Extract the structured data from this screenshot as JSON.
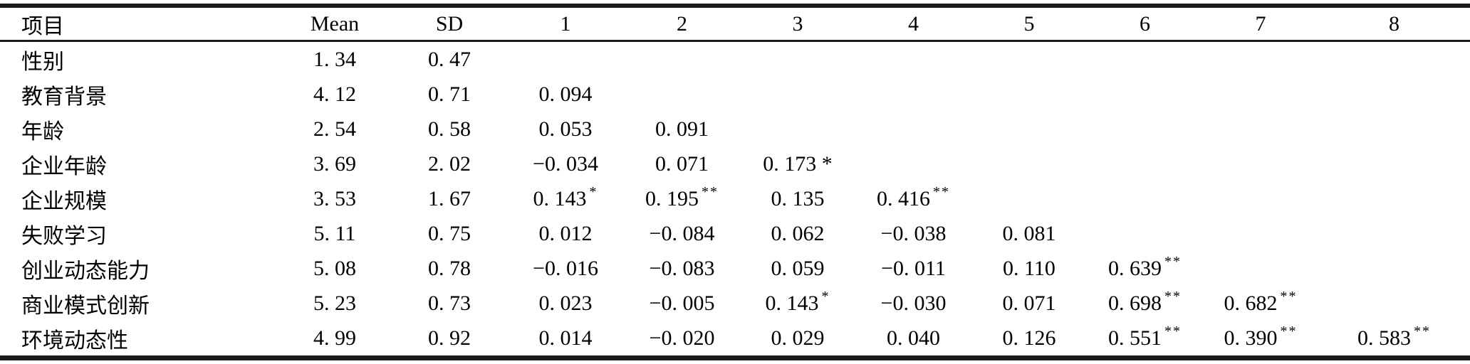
{
  "table": {
    "columns": [
      "项目",
      "Mean",
      "SD",
      "1",
      "2",
      "3",
      "4",
      "5",
      "6",
      "7",
      "8"
    ],
    "significance_note_markers": {
      "single": "*",
      "double": "**"
    },
    "rows": [
      {
        "label": "性别",
        "mean": "1. 34",
        "sd": "0. 47",
        "cells": [
          "",
          "",
          "",
          "",
          "",
          "",
          "",
          ""
        ]
      },
      {
        "label": "教育背景",
        "mean": "4. 12",
        "sd": "0. 71",
        "cells": [
          "0. 094",
          "",
          "",
          "",
          "",
          "",
          "",
          ""
        ]
      },
      {
        "label": "年龄",
        "mean": "2. 54",
        "sd": "0. 58",
        "cells": [
          "0. 053",
          "0. 091",
          "",
          "",
          "",
          "",
          "",
          ""
        ]
      },
      {
        "label": "企业年龄",
        "mean": "3. 69",
        "sd": "2. 02",
        "cells": [
          "−0. 034",
          "0. 071",
          "0. 173 *",
          "",
          "",
          "",
          "",
          ""
        ]
      },
      {
        "label": "企业规模",
        "mean": "3. 53",
        "sd": "1. 67",
        "cells": [
          "0. 143^*",
          "0. 195^**",
          "0. 135",
          "0. 416^**",
          "",
          "",
          "",
          ""
        ]
      },
      {
        "label": "失败学习",
        "mean": "5. 11",
        "sd": "0. 75",
        "cells": [
          "0. 012",
          "−0. 084",
          "0. 062",
          "−0. 038",
          "0. 081",
          "",
          "",
          ""
        ]
      },
      {
        "label": "创业动态能力",
        "mean": "5. 08",
        "sd": "0. 78",
        "cells": [
          "−0. 016",
          "−0. 083",
          "0. 059",
          "−0. 011",
          "0. 110",
          "0. 639^**",
          "",
          ""
        ]
      },
      {
        "label": "商业模式创新",
        "mean": "5. 23",
        "sd": "0. 73",
        "cells": [
          "0. 023",
          "−0. 005",
          "0. 143^*",
          "−0. 030",
          "0. 071",
          "0. 698^**",
          "0. 682^**",
          ""
        ]
      },
      {
        "label": "环境动态性",
        "mean": "4. 99",
        "sd": "0. 92",
        "cells": [
          "0. 014",
          "−0. 020",
          "0. 029",
          "0. 040",
          "0. 126",
          "0. 551^**",
          "0. 390^**",
          "0. 583^**"
        ]
      }
    ]
  }
}
